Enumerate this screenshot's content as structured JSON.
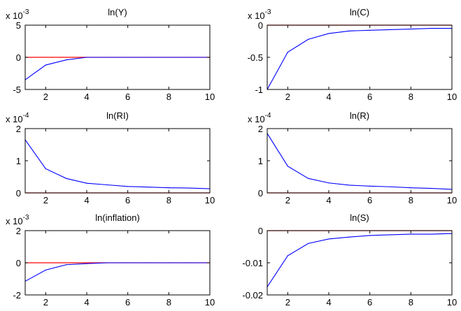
{
  "colors": {
    "series": "#0000ff",
    "zero_line": "#ff0000",
    "axes": "#000000"
  },
  "chart_data": [
    {
      "type": "line",
      "title": "ln(Y)",
      "multiplier_base": "x 10",
      "multiplier_exp": "-3",
      "xlim": [
        1,
        10
      ],
      "ylim": [
        -5,
        5
      ],
      "xticks": [
        2,
        4,
        6,
        8,
        10
      ],
      "yticks": [
        -5,
        0,
        5
      ],
      "ytick_labels": [
        "-5",
        "0",
        "5"
      ],
      "x": [
        1,
        2,
        3,
        4,
        5,
        6,
        7,
        8,
        9,
        10
      ],
      "values": [
        -3.5,
        -1.2,
        -0.4,
        0.0,
        0.0,
        0.0,
        0.0,
        0.0,
        0.0,
        0.0
      ]
    },
    {
      "type": "line",
      "title": "ln(C)",
      "multiplier_base": "x 10",
      "multiplier_exp": "-3",
      "xlim": [
        1,
        10
      ],
      "ylim": [
        -1,
        0
      ],
      "xticks": [
        2,
        4,
        6,
        8,
        10
      ],
      "yticks": [
        -1,
        -0.5,
        0
      ],
      "ytick_labels": [
        "-1",
        "-0.5",
        "0"
      ],
      "x": [
        1,
        2,
        3,
        4,
        5,
        6,
        7,
        8,
        9,
        10
      ],
      "values": [
        -1.0,
        -0.42,
        -0.22,
        -0.13,
        -0.09,
        -0.08,
        -0.07,
        -0.06,
        -0.05,
        -0.05
      ]
    },
    {
      "type": "line",
      "title": "ln(RI)",
      "multiplier_base": "x 10",
      "multiplier_exp": "-4",
      "xlim": [
        1,
        10
      ],
      "ylim": [
        0,
        2
      ],
      "xticks": [
        2,
        4,
        6,
        8,
        10
      ],
      "yticks": [
        0,
        1,
        2
      ],
      "ytick_labels": [
        "0",
        "1",
        "2"
      ],
      "x": [
        1,
        2,
        3,
        4,
        5,
        6,
        7,
        8,
        9,
        10
      ],
      "values": [
        1.65,
        0.75,
        0.45,
        0.3,
        0.25,
        0.2,
        0.18,
        0.16,
        0.15,
        0.13
      ]
    },
    {
      "type": "line",
      "title": "ln(R)",
      "multiplier_base": "x 10",
      "multiplier_exp": "-4",
      "xlim": [
        1,
        10
      ],
      "ylim": [
        0,
        2
      ],
      "xticks": [
        2,
        4,
        6,
        8,
        10
      ],
      "yticks": [
        0,
        1,
        2
      ],
      "ytick_labels": [
        "0",
        "1",
        "2"
      ],
      "x": [
        1,
        2,
        3,
        4,
        5,
        6,
        7,
        8,
        9,
        10
      ],
      "values": [
        1.85,
        0.83,
        0.45,
        0.31,
        0.24,
        0.21,
        0.19,
        0.16,
        0.14,
        0.11
      ]
    },
    {
      "type": "line",
      "title": "ln(inflation)",
      "multiplier_base": "x 10",
      "multiplier_exp": "-3",
      "xlim": [
        1,
        10
      ],
      "ylim": [
        -2,
        2
      ],
      "xticks": [
        2,
        4,
        6,
        8,
        10
      ],
      "yticks": [
        -2,
        0,
        2
      ],
      "ytick_labels": [
        "-2",
        "0",
        "2"
      ],
      "x": [
        1,
        2,
        3,
        4,
        5,
        6,
        7,
        8,
        9,
        10
      ],
      "values": [
        -1.15,
        -0.45,
        -0.12,
        -0.05,
        0.0,
        0.0,
        0.0,
        0.0,
        0.0,
        0.0
      ]
    },
    {
      "type": "line",
      "title": "ln(S)",
      "multiplier_base": "",
      "multiplier_exp": "",
      "xlim": [
        1,
        10
      ],
      "ylim": [
        -0.02,
        0
      ],
      "xticks": [
        2,
        4,
        6,
        8,
        10
      ],
      "yticks": [
        -0.02,
        -0.01,
        0
      ],
      "ytick_labels": [
        "-0.02",
        "-0.01",
        "0"
      ],
      "x": [
        1,
        2,
        3,
        4,
        5,
        6,
        7,
        8,
        9,
        10
      ],
      "values": [
        -0.0175,
        -0.0078,
        -0.004,
        -0.0026,
        -0.002,
        -0.0015,
        -0.0013,
        -0.0011,
        -0.0011,
        -0.0009
      ]
    }
  ]
}
